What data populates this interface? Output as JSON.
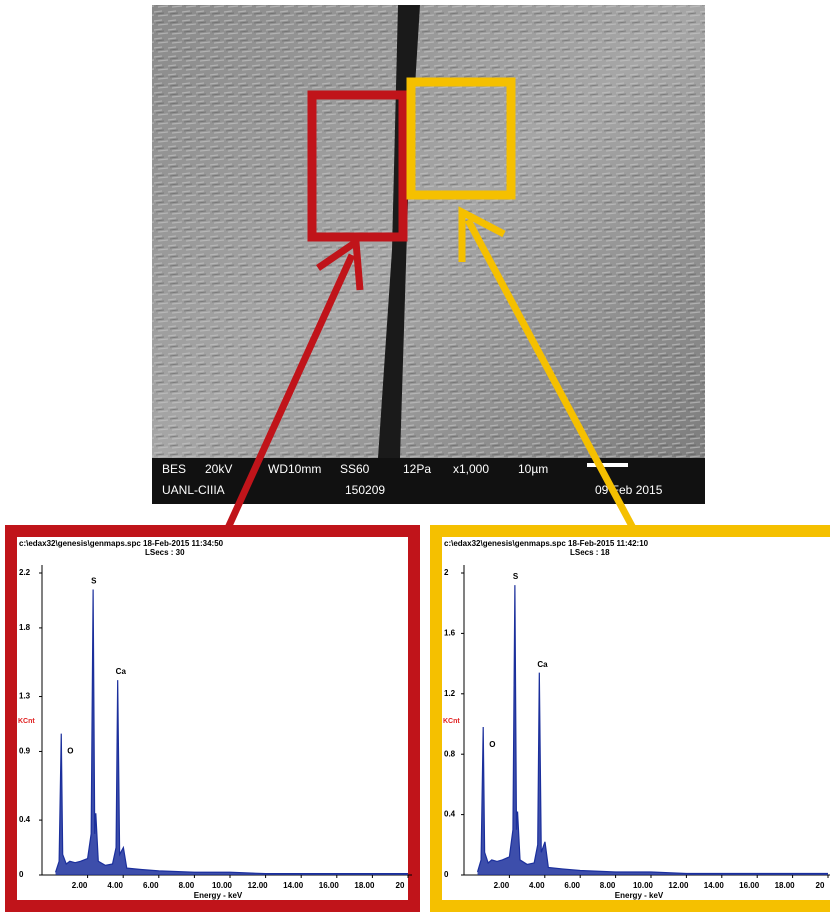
{
  "image": {
    "info_row1": [
      "BES",
      "20kV",
      "WD10mm",
      "SS60",
      "12Pa",
      "x1,000",
      "10µm"
    ],
    "info_row2": [
      "UANL-CIIIA",
      "150209",
      "09 Feb 2015"
    ]
  },
  "chart_data": [
    {
      "type": "line",
      "frame_color": "#c0141a",
      "title": "c:\\edax32\\genesis\\genmaps.spc  18-Feb-2015 11:34:50",
      "subtitle": "LSecs : 30",
      "x_label": "Energy - keV",
      "y_label": "KCnt",
      "xlim": [
        0,
        20
      ],
      "ylim": [
        0,
        2.2
      ],
      "xticks": [
        {
          "value": 2,
          "label": "2.00"
        },
        {
          "value": 4,
          "label": "4.00"
        },
        {
          "value": 6,
          "label": "6.00"
        },
        {
          "value": 8,
          "label": "8.00"
        },
        {
          "value": 10,
          "label": "10.00"
        },
        {
          "value": 12,
          "label": "12.00"
        },
        {
          "value": 14,
          "label": "14.00"
        },
        {
          "value": 16,
          "label": "16.00"
        },
        {
          "value": 18,
          "label": "18.00"
        },
        20
      ],
      "yticks": [
        0.0,
        0.4,
        0.9,
        1.3,
        1.8,
        2.2
      ],
      "peak_labels": [
        {
          "text": "O",
          "x": 0.52
        },
        {
          "text": "S",
          "x": 2.31
        },
        {
          "text": "Ca",
          "x": 3.69
        }
      ],
      "series": [
        {
          "color": "#1b2f9c",
          "x": [
            0.2,
            0.4,
            0.52,
            0.6,
            0.8,
            1.0,
            1.3,
            1.6,
            2.0,
            2.2,
            2.31,
            2.4,
            2.46,
            2.6,
            3.0,
            3.4,
            3.6,
            3.69,
            3.8,
            4.01,
            4.2,
            5,
            6,
            8,
            10,
            12,
            14,
            16,
            18,
            20
          ],
          "values": [
            0.02,
            0.1,
            1.03,
            0.15,
            0.08,
            0.1,
            0.09,
            0.1,
            0.12,
            0.3,
            2.08,
            0.3,
            0.45,
            0.1,
            0.07,
            0.08,
            0.2,
            1.42,
            0.15,
            0.2,
            0.05,
            0.04,
            0.03,
            0.02,
            0.02,
            0.01,
            0.01,
            0.01,
            0.01,
            0.01
          ]
        }
      ]
    },
    {
      "type": "line",
      "frame_color": "#f5c000",
      "title": "c:\\edax32\\genesis\\genmaps.spc  18-Feb-2015 11:42:10",
      "subtitle": "LSecs : 18",
      "x_label": "Energy - keV",
      "y_label": "KCnt",
      "xlim": [
        0,
        20
      ],
      "ylim": [
        0,
        2.0
      ],
      "xticks": [
        {
          "value": 2,
          "label": "2.00"
        },
        {
          "value": 4,
          "label": "4.00"
        },
        {
          "value": 6,
          "label": "6.00"
        },
        {
          "value": 8,
          "label": "8.00"
        },
        {
          "value": 10,
          "label": "10.00"
        },
        {
          "value": 12,
          "label": "12.00"
        },
        {
          "value": 14,
          "label": "14.00"
        },
        {
          "value": 16,
          "label": "16.00"
        },
        {
          "value": 18,
          "label": "18.00"
        },
        20
      ],
      "yticks": [
        0.0,
        0.4,
        0.8,
        1.2,
        1.6,
        2.0
      ],
      "peak_labels": [
        {
          "text": "O",
          "x": 0.52
        },
        {
          "text": "S",
          "x": 2.31
        },
        {
          "text": "Ca",
          "x": 3.69
        }
      ],
      "series": [
        {
          "color": "#1b2f9c",
          "x": [
            0.2,
            0.4,
            0.52,
            0.6,
            0.8,
            1.0,
            1.3,
            1.6,
            2.0,
            2.2,
            2.31,
            2.4,
            2.46,
            2.6,
            3.0,
            3.4,
            3.6,
            3.69,
            3.8,
            4.01,
            4.2,
            5,
            6,
            8,
            10,
            12,
            14,
            16,
            18,
            20
          ],
          "values": [
            0.02,
            0.1,
            0.98,
            0.15,
            0.08,
            0.1,
            0.09,
            0.1,
            0.12,
            0.3,
            1.92,
            0.3,
            0.42,
            0.1,
            0.07,
            0.08,
            0.2,
            1.34,
            0.15,
            0.22,
            0.05,
            0.04,
            0.03,
            0.02,
            0.02,
            0.01,
            0.01,
            0.01,
            0.01,
            0.01
          ]
        }
      ]
    }
  ]
}
